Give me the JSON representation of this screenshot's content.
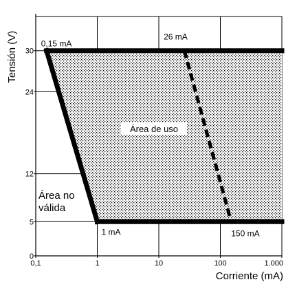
{
  "chart_data": {
    "type": "area",
    "xlabel": "Corriente (mA)",
    "ylabel": "Tensión (V)",
    "x_scale": "log",
    "xlim": [
      0.1,
      1000
    ],
    "ylim": [
      0,
      35
    ],
    "x_ticks": [
      {
        "value": 0.1,
        "label": "0,1"
      },
      {
        "value": 1,
        "label": "1"
      },
      {
        "value": 10,
        "label": "10"
      },
      {
        "value": 100,
        "label": "100"
      },
      {
        "value": 1000,
        "label": "1.000"
      }
    ],
    "y_ticks": [
      {
        "value": 0,
        "label": "0"
      },
      {
        "value": 5,
        "label": "5"
      },
      {
        "value": 12,
        "label": "12"
      },
      {
        "value": 24,
        "label": "24"
      },
      {
        "value": 30,
        "label": "30"
      }
    ],
    "grid": true,
    "usage_area": {
      "label": "Área de uso",
      "boundary": [
        {
          "x": 0.15,
          "y": 30
        },
        {
          "x": 1000,
          "y": 30
        },
        {
          "x": 1000,
          "y": 5
        },
        {
          "x": 1,
          "y": 5
        }
      ]
    },
    "invalid_area_label": "Área no válida",
    "dashed_line": [
      {
        "x": 26,
        "y": 30
      },
      {
        "x": 150,
        "y": 5
      }
    ],
    "annotations": [
      {
        "text": "0,15 mA",
        "x": 0.15,
        "y": 30
      },
      {
        "text": "26 mA",
        "x": 26,
        "y": 30
      },
      {
        "text": "1 mA",
        "x": 1,
        "y": 5
      },
      {
        "text": "150 mA",
        "x": 150,
        "y": 5
      }
    ],
    "colors": {
      "line": "#000000",
      "fill_pattern": "#000000",
      "background": "#ffffff"
    }
  }
}
